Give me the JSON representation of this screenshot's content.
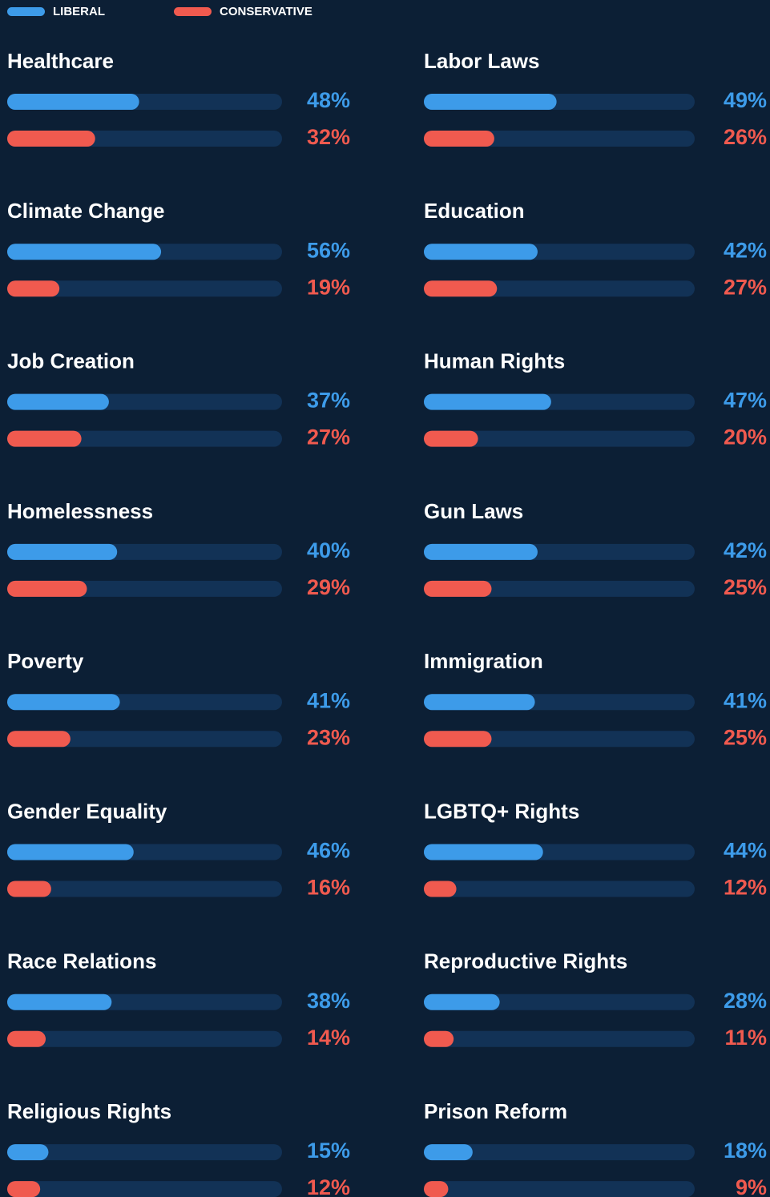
{
  "chart_data": {
    "type": "bar",
    "categories": [
      "Healthcare",
      "Labor Laws",
      "Climate Change",
      "Education",
      "Job Creation",
      "Human Rights",
      "Homelessness",
      "Gun Laws",
      "Poverty",
      "Immigration",
      "Gender Equality",
      "LGBTQ+ Rights",
      "Race Relations",
      "Reproductive Rights",
      "Religious Rights",
      "Prison Reform"
    ],
    "series": [
      {
        "name": "LIBERAL",
        "color": "#3d9be9",
        "values": [
          48,
          49,
          56,
          42,
          37,
          47,
          40,
          42,
          41,
          41,
          46,
          44,
          38,
          28,
          15,
          18
        ],
        "value_labels": [
          "48%",
          "49%",
          "56%",
          "42%",
          "37%",
          "47%",
          "40%",
          "42%",
          "41%",
          "41%",
          "46%",
          "44%",
          "38%",
          "28%",
          "15%",
          "18%"
        ]
      },
      {
        "name": "CONSERVATIVE",
        "color": "#f05a4f",
        "values": [
          32,
          26,
          19,
          27,
          27,
          20,
          29,
          25,
          23,
          25,
          16,
          12,
          14,
          11,
          12,
          9
        ],
        "value_labels": [
          "32%",
          "26%",
          "19%",
          "27%",
          "27%",
          "20%",
          "29%",
          "25%",
          "23%",
          "25%",
          "16%",
          "12%",
          "14%",
          "11%",
          "12%",
          "9%"
        ]
      }
    ],
    "xlim": [
      0,
      100
    ]
  }
}
